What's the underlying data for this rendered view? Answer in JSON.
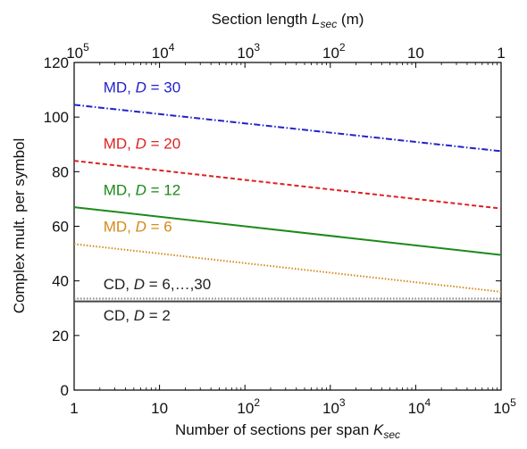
{
  "chart_data": {
    "type": "line",
    "xscale": "log",
    "xlim": [
      1,
      100000
    ],
    "ylim": [
      0,
      120
    ],
    "grid": false,
    "xlabel": "Number of sections per span ",
    "xlabel_sub": "K",
    "xlabel_subscript": "sec",
    "x2label": "Section length ",
    "x2label_var": "L",
    "x2label_subscript": "sec",
    "x2label_unit": " (m)",
    "ylabel": "Complex mult. per symbol",
    "yticks": [
      {
        "value": 0,
        "label": "0"
      },
      {
        "value": 20,
        "label": "20"
      },
      {
        "value": 40,
        "label": "40"
      },
      {
        "value": 60,
        "label": "60"
      },
      {
        "value": 80,
        "label": "80"
      },
      {
        "value": 100,
        "label": "100"
      },
      {
        "value": 120,
        "label": "120"
      }
    ],
    "xticks": [
      {
        "value": 1,
        "base": "1",
        "exp": ""
      },
      {
        "value": 10,
        "base": "10",
        "exp": ""
      },
      {
        "value": 100,
        "base": "10",
        "exp": "2"
      },
      {
        "value": 1000,
        "base": "10",
        "exp": "3"
      },
      {
        "value": 10000,
        "base": "10",
        "exp": "4"
      },
      {
        "value": 100000,
        "base": "10",
        "exp": "5"
      }
    ],
    "x2ticks": [
      {
        "value": 1,
        "base": "10",
        "exp": "5"
      },
      {
        "value": 10,
        "base": "10",
        "exp": "4"
      },
      {
        "value": 100,
        "base": "10",
        "exp": "3"
      },
      {
        "value": 1000,
        "base": "10",
        "exp": "2"
      },
      {
        "value": 10000,
        "base": "10",
        "exp": ""
      },
      {
        "value": 100000,
        "base": "1",
        "exp": ""
      }
    ],
    "series": [
      {
        "name": "MD, D = 30",
        "label_prefix": "MD, ",
        "label_var": "D",
        "label_suffix": " = 30",
        "color": "#2222cc",
        "dash": "dashdot",
        "x": [
          1,
          100000
        ],
        "y": [
          104.5,
          87.5
        ],
        "label_x": 2.2,
        "label_y": 109
      },
      {
        "name": "MD, D = 20",
        "label_prefix": "MD, ",
        "label_var": "D",
        "label_suffix": " = 20",
        "color": "#dd2222",
        "dash": "dashed",
        "x": [
          1,
          100000
        ],
        "y": [
          84,
          66.5
        ],
        "label_x": 2.2,
        "label_y": 88.5
      },
      {
        "name": "MD, D = 12",
        "label_prefix": "MD, ",
        "label_var": "D",
        "label_suffix": " = 12",
        "color": "#1a8a1a",
        "dash": "solid",
        "x": [
          1,
          100000
        ],
        "y": [
          67,
          49.5
        ],
        "label_x": 2.2,
        "label_y": 71.5
      },
      {
        "name": "MD, D = 6",
        "label_prefix": "MD, ",
        "label_var": "D",
        "label_suffix": " = 6",
        "color": "#d48a1a",
        "dash": "dotted",
        "x": [
          1,
          100000
        ],
        "y": [
          53.5,
          36
        ],
        "label_x": 2.2,
        "label_y": 58
      },
      {
        "name": "CD, D = 6,…,30",
        "label_prefix": "CD, ",
        "label_var": "D",
        "label_suffix": " = 6,…,30",
        "color": "#888888",
        "dash": "dotted",
        "x": [
          1,
          100000
        ],
        "y": [
          33.5,
          33.5
        ],
        "label_x": 2.2,
        "label_y": 37
      },
      {
        "name": "CD, D = 2",
        "label_prefix": "CD, ",
        "label_var": "D",
        "label_suffix": " = 2",
        "color": "#444444",
        "dash": "solid",
        "x": [
          1,
          100000
        ],
        "y": [
          32.5,
          32.5
        ],
        "label_x": 2.2,
        "label_y": 25.5
      }
    ]
  }
}
